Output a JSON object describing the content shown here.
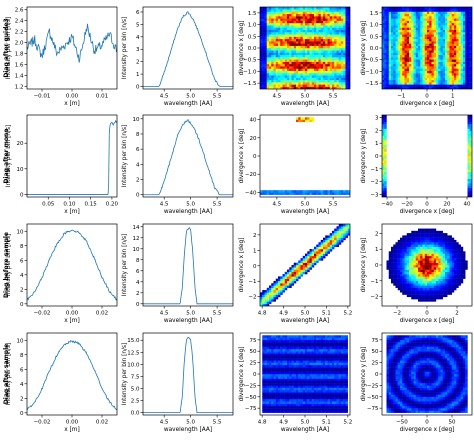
{
  "row_labels": [
    "Diag after guide3",
    "Diag after mono",
    "Diag before sample",
    "Diag after sample"
  ],
  "colors": {
    "line": "#1f77b4",
    "frame": "#000000",
    "heatmap_bg": "#ffffff"
  },
  "chart_data": [
    {
      "type": "line",
      "row": 0,
      "col": 0,
      "xlabel": "x [m]",
      "ylabel": "Intensity per bin [n/s]",
      "xlim": [
        -0.015,
        0.015
      ],
      "ylim": [
        1.15,
        2.65
      ],
      "xticks": [
        {
          "v": -0.01,
          "t": "−0.01"
        },
        {
          "v": 0.0,
          "t": "0.00"
        },
        {
          "v": 0.01,
          "t": "0.01"
        }
      ],
      "yticks": [
        {
          "v": 1.2,
          "t": "1.2"
        },
        {
          "v": 1.4,
          "t": "1.4"
        },
        {
          "v": 1.6,
          "t": "1.6"
        },
        {
          "v": 1.8,
          "t": "1.8"
        },
        {
          "v": 2.0,
          "t": "2.0"
        },
        {
          "v": 2.2,
          "t": "2.2"
        },
        {
          "v": 2.4,
          "t": "2.4"
        },
        {
          "v": 2.6,
          "t": "2.6"
        }
      ],
      "x": [
        -0.015,
        -0.0125,
        -0.01,
        -0.0075,
        -0.005,
        -0.0025,
        0.0,
        0.0025,
        0.005,
        0.0075,
        0.01,
        0.0125,
        0.015
      ],
      "y": [
        1.9,
        2.05,
        1.75,
        2.2,
        1.8,
        1.95,
        2.1,
        1.7,
        2.3,
        1.85,
        1.95,
        2.15,
        1.85
      ]
    },
    {
      "type": "line",
      "row": 0,
      "col": 1,
      "xlabel": "wavelength [AA]",
      "ylabel": "Intensity per bin [n/s]",
      "xlim": [
        4.1,
        5.8
      ],
      "ylim": [
        -0.2,
        6.4
      ],
      "xticks": [
        {
          "v": 4.5,
          "t": "4.5"
        },
        {
          "v": 5.0,
          "t": "5.0"
        },
        {
          "v": 5.5,
          "t": "5.5"
        }
      ],
      "yticks": [
        {
          "v": 0,
          "t": "0"
        },
        {
          "v": 1,
          "t": "1"
        },
        {
          "v": 2,
          "t": "2"
        },
        {
          "v": 3,
          "t": "3"
        },
        {
          "v": 4,
          "t": "4"
        },
        {
          "v": 5,
          "t": "5"
        },
        {
          "v": 6,
          "t": "6"
        }
      ],
      "x": [
        4.1,
        4.4,
        4.45,
        4.55,
        4.65,
        4.75,
        4.85,
        4.95,
        5.05,
        5.15,
        5.25,
        5.35,
        5.45,
        5.55,
        5.8
      ],
      "y": [
        0,
        0,
        0.5,
        1.8,
        3.2,
        4.6,
        5.6,
        6.0,
        5.4,
        4.4,
        3.2,
        1.9,
        0.6,
        0,
        0
      ]
    },
    {
      "type": "heatmap",
      "row": 0,
      "col": 2,
      "xlabel": "wavelength [AA]",
      "ylabel": "divergence x [deg]",
      "xlim": [
        4.2,
        5.8
      ],
      "ylim": [
        -1.75,
        1.75
      ],
      "xticks": [
        {
          "v": 4.5,
          "t": "4.5"
        },
        {
          "v": 5.0,
          "t": "5.0"
        },
        {
          "v": 5.5,
          "t": "5.5"
        }
      ],
      "yticks": [
        {
          "v": -1.5,
          "t": "−1.5"
        },
        {
          "v": -1.0,
          "t": "−1.0"
        },
        {
          "v": -0.5,
          "t": "−0.5"
        },
        {
          "v": 0.0,
          "t": "0.0"
        },
        {
          "v": 0.5,
          "t": "0.5"
        },
        {
          "v": 1.0,
          "t": "1.0"
        },
        {
          "v": 1.5,
          "t": "1.5"
        }
      ]
    },
    {
      "type": "heatmap",
      "row": 0,
      "col": 3,
      "xlabel": "divergence x [deg]",
      "ylabel": "divergence y [deg]",
      "xlim": [
        -1.75,
        1.75
      ],
      "ylim": [
        -1.75,
        1.75
      ],
      "xticks": [
        {
          "v": -1,
          "t": "−1"
        },
        {
          "v": 0,
          "t": "0"
        },
        {
          "v": 1,
          "t": "1"
        }
      ],
      "yticks": [
        {
          "v": -1.5,
          "t": "−1.5"
        },
        {
          "v": -1.0,
          "t": "−1.0"
        },
        {
          "v": -0.5,
          "t": "−0.5"
        },
        {
          "v": 0.0,
          "t": "0.0"
        },
        {
          "v": 0.5,
          "t": "0.5"
        },
        {
          "v": 1.0,
          "t": "1.0"
        },
        {
          "v": 1.5,
          "t": "1.5"
        }
      ]
    },
    {
      "type": "line",
      "row": 1,
      "col": 0,
      "xlabel": "x [m]",
      "ylabel": "Intensity per bin [n/s]",
      "xlim": [
        0.0,
        0.212
      ],
      "ylim": [
        -1,
        31
      ],
      "xticks": [
        {
          "v": 0.05,
          "t": "0.05"
        },
        {
          "v": 0.1,
          "t": "0.10"
        },
        {
          "v": 0.15,
          "t": "0.15"
        },
        {
          "v": 0.2,
          "t": "0.20"
        }
      ],
      "yticks": [
        {
          "v": 0,
          "t": "0"
        },
        {
          "v": 10,
          "t": "10"
        },
        {
          "v": 20,
          "t": "20"
        }
      ],
      "x": [
        0.0,
        0.192,
        0.194,
        0.196,
        0.2,
        0.204,
        0.208,
        0.212
      ],
      "y": [
        0,
        0,
        26,
        27.5,
        28,
        27.2,
        28.5,
        28
      ]
    },
    {
      "type": "line",
      "row": 1,
      "col": 1,
      "xlabel": "wavelength [AA]",
      "ylabel": "Intensity per bin [n/s]",
      "xlim": [
        4.1,
        5.8
      ],
      "ylim": [
        -0.3,
        10.5
      ],
      "xticks": [
        {
          "v": 4.5,
          "t": "4.5"
        },
        {
          "v": 5.0,
          "t": "5.0"
        },
        {
          "v": 5.5,
          "t": "5.5"
        }
      ],
      "yticks": [
        {
          "v": 0,
          "t": "0"
        },
        {
          "v": 2,
          "t": "2"
        },
        {
          "v": 4,
          "t": "4"
        },
        {
          "v": 6,
          "t": "6"
        },
        {
          "v": 8,
          "t": "8"
        },
        {
          "v": 10,
          "t": "10"
        }
      ],
      "x": [
        4.1,
        4.4,
        4.45,
        4.55,
        4.65,
        4.75,
        4.85,
        4.95,
        5.05,
        5.15,
        5.25,
        5.35,
        5.45,
        5.55,
        5.8
      ],
      "y": [
        0,
        0,
        0.8,
        2.9,
        5.3,
        7.7,
        9.3,
        9.8,
        9.0,
        7.4,
        5.3,
        3.1,
        1.0,
        0,
        0
      ]
    },
    {
      "type": "heatmap",
      "row": 1,
      "col": 2,
      "xlabel": "wavelength [AA]",
      "ylabel": "divergence x [deg]",
      "xlim": [
        4.2,
        5.8
      ],
      "ylim": [
        -45,
        45
      ],
      "xticks": [
        {
          "v": 4.5,
          "t": "4.5"
        },
        {
          "v": 5.0,
          "t": "5.0"
        },
        {
          "v": 5.5,
          "t": "5.5"
        }
      ],
      "yticks": [
        {
          "v": -40,
          "t": "−40"
        },
        {
          "v": -20,
          "t": "−20"
        },
        {
          "v": 0,
          "t": "0"
        },
        {
          "v": 20,
          "t": "20"
        },
        {
          "v": 40,
          "t": "40"
        }
      ]
    },
    {
      "type": "heatmap",
      "row": 1,
      "col": 3,
      "xlabel": "divergence x [deg]",
      "ylabel": "divergence y [deg]",
      "xlim": [
        -45,
        45
      ],
      "ylim": [
        -3.2,
        3.2
      ],
      "xticks": [
        {
          "v": -40,
          "t": "−40"
        },
        {
          "v": -20,
          "t": "−20"
        },
        {
          "v": 0,
          "t": "0"
        },
        {
          "v": 20,
          "t": "20"
        },
        {
          "v": 40,
          "t": "40"
        }
      ],
      "yticks": [
        {
          "v": -3,
          "t": "−3"
        },
        {
          "v": -2,
          "t": "−2"
        },
        {
          "v": -1,
          "t": "−1"
        },
        {
          "v": 0,
          "t": "0"
        },
        {
          "v": 1,
          "t": "1"
        },
        {
          "v": 2,
          "t": "2"
        },
        {
          "v": 3,
          "t": "3"
        }
      ]
    },
    {
      "type": "line",
      "row": 2,
      "col": 0,
      "xlabel": "x [m]",
      "ylabel": "Intensity per bin [n/s]",
      "xlim": [
        -0.03,
        0.03
      ],
      "ylim": [
        -0.3,
        11
      ],
      "xticks": [
        {
          "v": -0.02,
          "t": "−0.02"
        },
        {
          "v": 0.0,
          "t": "0.00"
        },
        {
          "v": 0.02,
          "t": "0.02"
        }
      ],
      "yticks": [
        {
          "v": 0,
          "t": "0"
        },
        {
          "v": 2,
          "t": "2"
        },
        {
          "v": 4,
          "t": "4"
        },
        {
          "v": 6,
          "t": "6"
        },
        {
          "v": 8,
          "t": "8"
        },
        {
          "v": 10,
          "t": "10"
        }
      ],
      "x": [
        -0.03,
        -0.025,
        -0.02,
        -0.015,
        -0.01,
        -0.005,
        0.0,
        0.005,
        0.01,
        0.015,
        0.02,
        0.025,
        0.03
      ],
      "y": [
        0.5,
        1.6,
        3.6,
        6.1,
        8.3,
        9.7,
        10.2,
        9.8,
        8.5,
        6.2,
        3.7,
        1.7,
        0.5
      ]
    },
    {
      "type": "line",
      "row": 2,
      "col": 1,
      "xlabel": "wavelength [AA]",
      "ylabel": "Intensity per bin [n/s]",
      "xlim": [
        4.1,
        5.8
      ],
      "ylim": [
        -0.4,
        14.5
      ],
      "xticks": [
        {
          "v": 4.5,
          "t": "4.5"
        },
        {
          "v": 5.0,
          "t": "5.0"
        },
        {
          "v": 5.5,
          "t": "5.5"
        }
      ],
      "yticks": [
        {
          "v": 0,
          "t": "0"
        },
        {
          "v": 2,
          "t": "2"
        },
        {
          "v": 4,
          "t": "4"
        },
        {
          "v": 6,
          "t": "6"
        },
        {
          "v": 8,
          "t": "8"
        },
        {
          "v": 10,
          "t": "10"
        },
        {
          "v": 12,
          "t": "12"
        },
        {
          "v": 14,
          "t": "14"
        }
      ],
      "x": [
        4.1,
        4.8,
        4.84,
        4.88,
        4.92,
        4.96,
        5.0,
        5.04,
        5.08,
        5.12,
        5.8
      ],
      "y": [
        0,
        0,
        2.5,
        9.0,
        13.2,
        13.8,
        13.4,
        9.5,
        3.0,
        0,
        0
      ]
    },
    {
      "type": "heatmap",
      "row": 2,
      "col": 2,
      "xlabel": "wavelength [AA]",
      "ylabel": "divergence x [deg]",
      "xlim": [
        4.79,
        5.21
      ],
      "ylim": [
        -2.6,
        2.7
      ],
      "xticks": [
        {
          "v": 4.8,
          "t": "4.8"
        },
        {
          "v": 4.9,
          "t": "4.9"
        },
        {
          "v": 5.0,
          "t": "5.0"
        },
        {
          "v": 5.1,
          "t": "5.1"
        },
        {
          "v": 5.2,
          "t": "5.2"
        }
      ],
      "yticks": [
        {
          "v": -2,
          "t": "−2"
        },
        {
          "v": -1,
          "t": "−1"
        },
        {
          "v": 0,
          "t": "0"
        },
        {
          "v": 1,
          "t": "1"
        },
        {
          "v": 2,
          "t": "2"
        }
      ]
    },
    {
      "type": "heatmap",
      "row": 2,
      "col": 3,
      "xlabel": "divergence x [deg]",
      "ylabel": "divergence y [deg]",
      "xlim": [
        -3,
        3
      ],
      "ylim": [
        -2.6,
        2.6
      ],
      "xticks": [
        {
          "v": -2,
          "t": "−2"
        },
        {
          "v": 0,
          "t": "0"
        },
        {
          "v": 2,
          "t": "2"
        }
      ],
      "yticks": [
        {
          "v": -2,
          "t": "−2"
        },
        {
          "v": -1,
          "t": "−1"
        },
        {
          "v": 0,
          "t": "0"
        },
        {
          "v": 1,
          "t": "1"
        },
        {
          "v": 2,
          "t": "2"
        }
      ]
    },
    {
      "type": "line",
      "row": 3,
      "col": 0,
      "xlabel": "x [m]",
      "ylabel": "Intensity per bin [n/s]",
      "xlim": [
        -0.03,
        0.03
      ],
      "ylim": [
        -0.3,
        11
      ],
      "xticks": [
        {
          "v": -0.02,
          "t": "−0.02"
        },
        {
          "v": 0.0,
          "t": "0.00"
        },
        {
          "v": 0.02,
          "t": "0.02"
        }
      ],
      "yticks": [
        {
          "v": 0,
          "t": "0"
        },
        {
          "v": 2,
          "t": "2"
        },
        {
          "v": 4,
          "t": "4"
        },
        {
          "v": 6,
          "t": "6"
        },
        {
          "v": 8,
          "t": "8"
        },
        {
          "v": 10,
          "t": "10"
        }
      ],
      "x": [
        -0.03,
        -0.025,
        -0.02,
        -0.015,
        -0.01,
        -0.005,
        0.0,
        0.005,
        0.01,
        0.015,
        0.02,
        0.025,
        0.03
      ],
      "y": [
        0.4,
        1.4,
        3.3,
        5.8,
        8.0,
        9.4,
        9.9,
        9.5,
        8.1,
        5.9,
        3.4,
        1.5,
        0.4
      ]
    },
    {
      "type": "line",
      "row": 3,
      "col": 1,
      "xlabel": "wavelength [AA]",
      "ylabel": "Intensity per bin [n/s]",
      "xlim": [
        4.1,
        5.8
      ],
      "ylim": [
        -0.5,
        16.5
      ],
      "xticks": [
        {
          "v": 4.5,
          "t": "4.5"
        },
        {
          "v": 5.0,
          "t": "5.0"
        },
        {
          "v": 5.5,
          "t": "5.5"
        }
      ],
      "yticks": [
        {
          "v": 0,
          "t": "0.0"
        },
        {
          "v": 2.5,
          "t": "2.5"
        },
        {
          "v": 5,
          "t": "5.0"
        },
        {
          "v": 7.5,
          "t": "7.5"
        },
        {
          "v": 10,
          "t": "10.0"
        },
        {
          "v": 12.5,
          "t": "12.5"
        },
        {
          "v": 15,
          "t": "15.0"
        }
      ],
      "x": [
        4.1,
        4.8,
        4.84,
        4.88,
        4.92,
        4.96,
        5.0,
        5.04,
        5.08,
        5.12,
        5.8
      ],
      "y": [
        0,
        0,
        3.0,
        10.5,
        15.0,
        15.6,
        15.2,
        11.0,
        3.5,
        0,
        0
      ]
    },
    {
      "type": "heatmap",
      "row": 3,
      "col": 2,
      "xlabel": "wavelength [AA]",
      "ylabel": "divergence x [deg]",
      "xlim": [
        4.79,
        5.21
      ],
      "ylim": [
        -90,
        90
      ],
      "xticks": [
        {
          "v": 4.8,
          "t": "4.8"
        },
        {
          "v": 4.9,
          "t": "4.9"
        },
        {
          "v": 5.0,
          "t": "5.0"
        },
        {
          "v": 5.1,
          "t": "5.1"
        },
        {
          "v": 5.2,
          "t": "5.2"
        }
      ],
      "yticks": [
        {
          "v": -75,
          "t": "−75"
        },
        {
          "v": -50,
          "t": "−50"
        },
        {
          "v": -25,
          "t": "−25"
        },
        {
          "v": 0,
          "t": "0"
        },
        {
          "v": 25,
          "t": "25"
        },
        {
          "v": 50,
          "t": "50"
        },
        {
          "v": 75,
          "t": "75"
        }
      ]
    },
    {
      "type": "heatmap",
      "row": 3,
      "col": 3,
      "xlabel": "divergence x [deg]",
      "ylabel": "divergence y [deg]",
      "xlim": [
        -90,
        90
      ],
      "ylim": [
        -90,
        90
      ],
      "xticks": [
        {
          "v": -50,
          "t": "−50"
        },
        {
          "v": 0,
          "t": "0"
        },
        {
          "v": 50,
          "t": "50"
        }
      ],
      "yticks": [
        {
          "v": -75,
          "t": "−75"
        },
        {
          "v": -50,
          "t": "−50"
        },
        {
          "v": -25,
          "t": "−25"
        },
        {
          "v": 0,
          "t": "0"
        },
        {
          "v": 25,
          "t": "25"
        },
        {
          "v": 50,
          "t": "50"
        },
        {
          "v": 75,
          "t": "75"
        }
      ]
    }
  ]
}
